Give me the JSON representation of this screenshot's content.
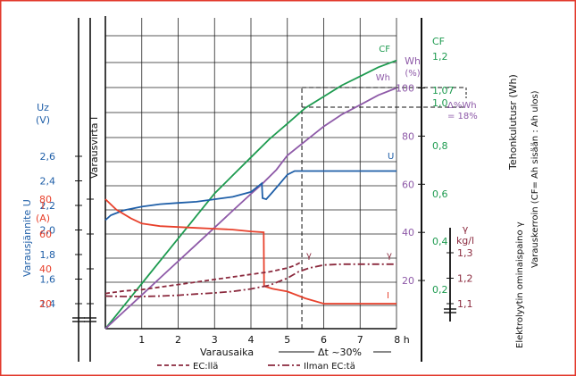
{
  "chart_data": {
    "type": "line",
    "xlabel": "Varausaika",
    "x_unit": "h",
    "x_ticks": [
      "1",
      "2",
      "3",
      "4",
      "5",
      "6",
      "7",
      "8 h"
    ],
    "xlim": [
      0,
      8
    ],
    "dt_note": "Δt ~30%",
    "dt_at": 5.4,
    "y_axes": {
      "uz": {
        "title": "Varausjännite U",
        "label": "Uz",
        "unit": "(V)",
        "ticks": [
          "1,4",
          "1,6",
          "1,8",
          "2,0",
          "2,2",
          "2,4",
          "2,6"
        ],
        "tick_values": [
          1.4,
          1.6,
          1.8,
          2.0,
          2.2,
          2.4,
          2.6
        ],
        "color": "#1f5fa8"
      },
      "current": {
        "title": "Varausvirta I",
        "label": "I",
        "unit": "(A)",
        "ticks": [
          "20",
          "40",
          "60",
          "80"
        ],
        "tick_values": [
          20,
          40,
          60,
          80
        ],
        "color": "#e8412c"
      },
      "wh": {
        "title": "Tehonkulutusr (Wh)",
        "label": "Wh",
        "unit": "(%)",
        "ticks": [
          "20",
          "40",
          "60",
          "80",
          "100"
        ],
        "tick_values": [
          20,
          40,
          60,
          80,
          100
        ],
        "color": "#8e5aa8"
      },
      "cf": {
        "title": "Varauskerroin (CF= Ah sisään : Ah ulos)",
        "label": "CF",
        "ticks": [
          "0,2",
          "0,4",
          "0,6",
          "0,8",
          "1,0",
          "1,07",
          "1,2"
        ],
        "tick_values": [
          0.2,
          0.4,
          0.6,
          0.8,
          1.0,
          1.07,
          1.2
        ],
        "color": "#1e9b50"
      },
      "gamma": {
        "title": "Elektrolyytin ominaispaino γ",
        "label": "γ",
        "unit": "kg/l",
        "ticks": [
          "1,1",
          "1,2",
          "1,3"
        ],
        "tick_values": [
          1.1,
          1.2,
          1.3
        ],
        "color": "#8b2a3e"
      }
    },
    "annotation": {
      "lines": [
        "Δ%Wh",
        "= 18%"
      ],
      "color": "#8e5aa8"
    },
    "curve_labels": {
      "cf": "CF",
      "wh": "Wh",
      "u": "U",
      "gamma_ec": "γ",
      "gamma_no_ec": "γ",
      "i": "I"
    },
    "series": [
      {
        "key": "cf",
        "axis": "cf",
        "color": "#1e9b50",
        "style": "solid",
        "x": [
          0,
          0.5,
          1,
          1.5,
          2,
          2.5,
          3,
          3.5,
          4,
          4.5,
          5,
          5.5,
          6,
          6.5,
          7,
          7.5,
          8
        ],
        "y": [
          0.0,
          0.1,
          0.2,
          0.3,
          0.4,
          0.5,
          0.6,
          0.68,
          0.76,
          0.84,
          0.91,
          0.98,
          1.03,
          1.08,
          1.12,
          1.16,
          1.19
        ]
      },
      {
        "key": "wh",
        "axis": "wh",
        "color": "#8e5aa8",
        "style": "solid",
        "x": [
          0,
          0.5,
          1,
          1.5,
          2,
          2.5,
          3,
          3.5,
          4,
          4.3,
          4.7,
          5,
          5.5,
          6,
          6.5,
          7,
          7.5,
          8
        ],
        "y": [
          0,
          7,
          14,
          21,
          28,
          35,
          42,
          49,
          56,
          60,
          66,
          72,
          78,
          84,
          89,
          93,
          97,
          100
        ]
      },
      {
        "key": "u",
        "axis": "uz",
        "color": "#1f5fa8",
        "style": "solid",
        "x": [
          0,
          0.15,
          0.5,
          1,
          1.5,
          2,
          2.5,
          3,
          3.5,
          4,
          4.3,
          4.32,
          4.42,
          4.6,
          4.8,
          5,
          5.2,
          5.4,
          6,
          7,
          8
        ],
        "y": [
          2.08,
          2.12,
          2.16,
          2.19,
          2.21,
          2.22,
          2.23,
          2.25,
          2.27,
          2.31,
          2.38,
          2.26,
          2.25,
          2.31,
          2.38,
          2.45,
          2.48,
          2.48,
          2.48,
          2.48,
          2.48
        ]
      },
      {
        "key": "i",
        "axis": "current",
        "color": "#e8412c",
        "style": "solid",
        "x": [
          0,
          0.3,
          0.7,
          1,
          1.5,
          2,
          2.5,
          3,
          3.5,
          4,
          4.35,
          4.36,
          4.6,
          5,
          5.5,
          6,
          6.5,
          7,
          8
        ],
        "y": [
          80,
          74,
          69,
          66,
          64.5,
          64,
          63.5,
          63,
          62.5,
          61.5,
          61,
          30,
          28.5,
          27,
          23,
          20,
          20,
          20,
          20
        ]
      },
      {
        "key": "gamma_ec",
        "axis": "gamma",
        "color": "#8b2a3e",
        "style": "dashed",
        "x": [
          0,
          0.5,
          1,
          1.5,
          2,
          2.5,
          3,
          3.5,
          4,
          4.5,
          5,
          5.2,
          5.4
        ],
        "y": [
          1.14,
          1.15,
          1.155,
          1.165,
          1.175,
          1.185,
          1.195,
          1.205,
          1.215,
          1.225,
          1.24,
          1.25,
          1.265
        ]
      },
      {
        "key": "gamma_no_ec",
        "axis": "gamma",
        "color": "#8b2a3e",
        "style": "dashdot",
        "x": [
          0,
          0.5,
          1,
          1.5,
          2,
          2.5,
          3,
          3.5,
          4,
          4.5,
          5,
          5.3,
          5.6,
          6,
          6.5,
          7,
          8
        ],
        "y": [
          1.13,
          1.128,
          1.128,
          1.13,
          1.133,
          1.138,
          1.142,
          1.148,
          1.158,
          1.172,
          1.2,
          1.225,
          1.24,
          1.252,
          1.255,
          1.255,
          1.255
        ]
      }
    ],
    "legend": [
      {
        "label": "EC:llä",
        "style": "dashed",
        "color": "#8b2a3e"
      },
      {
        "label": "Ilman EC:tä",
        "style": "dashdot",
        "color": "#8b2a3e"
      }
    ]
  }
}
